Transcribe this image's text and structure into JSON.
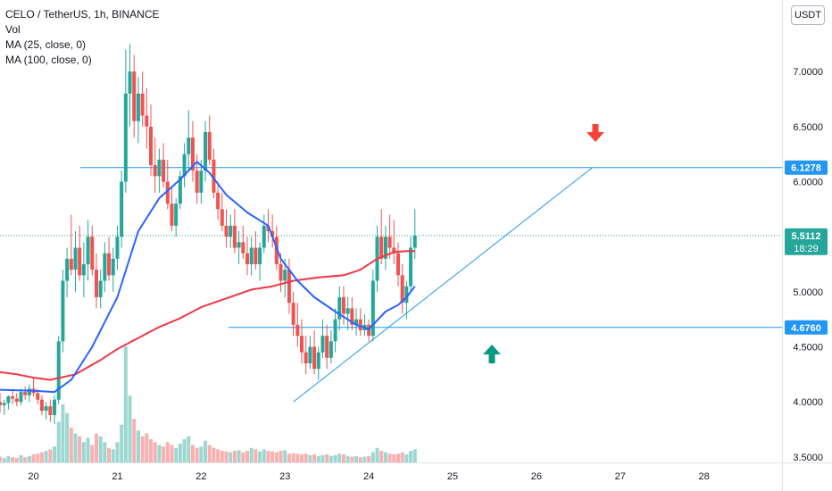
{
  "legend": {
    "symbol": "CELO / TetherUS, 1h, BINANCE",
    "vol": "Vol",
    "ma25": "MA (25, close, 0)",
    "ma100": "MA (100, close, 0)"
  },
  "currency": "USDT",
  "colors": {
    "up": "#26a69a",
    "down": "#ef5350",
    "ma25": "#2962ff",
    "ma100": "#f23645",
    "hline": "#2196f3",
    "arrow_down": "#f44336",
    "arrow_up": "#089981"
  },
  "chart_data": {
    "type": "candlestick",
    "title": "CELO / TetherUS, 1h, BINANCE",
    "x_ticks": [
      "20",
      "21",
      "22",
      "23",
      "24",
      "25",
      "26",
      "27",
      "28"
    ],
    "y_ticks": [
      "7.0000",
      "6.5000",
      "6.0000",
      "5.5000",
      "5.0000",
      "4.5000",
      "4.0000",
      "3.5000"
    ],
    "y_range": [
      3.45,
      7.65
    ],
    "x_range_days": [
      19.6,
      28.93
    ],
    "last_price": "5.5112",
    "countdown": "18:29",
    "horizontal_levels": [
      "6.1278",
      "4.6760"
    ],
    "trendline": {
      "from": [
        23.1,
        4.0
      ],
      "to": [
        26.67,
        6.13
      ]
    },
    "ma25_points": [
      [
        19.6,
        4.11
      ],
      [
        20.0,
        4.1
      ],
      [
        20.25,
        4.09
      ],
      [
        20.45,
        4.2
      ],
      [
        20.7,
        4.5
      ],
      [
        21.0,
        4.95
      ],
      [
        21.25,
        5.55
      ],
      [
        21.5,
        5.85
      ],
      [
        21.75,
        6.02
      ],
      [
        21.95,
        6.18
      ],
      [
        22.1,
        6.08
      ],
      [
        22.3,
        5.88
      ],
      [
        22.55,
        5.72
      ],
      [
        22.8,
        5.6
      ],
      [
        22.95,
        5.3
      ],
      [
        23.15,
        5.1
      ],
      [
        23.35,
        4.95
      ],
      [
        23.6,
        4.82
      ],
      [
        23.85,
        4.7
      ],
      [
        24.0,
        4.66
      ],
      [
        24.2,
        4.82
      ],
      [
        24.35,
        4.88
      ],
      [
        24.45,
        4.95
      ],
      [
        24.55,
        5.05
      ]
    ],
    "ma100_points": [
      [
        19.6,
        4.27
      ],
      [
        19.8,
        4.25
      ],
      [
        20.0,
        4.22
      ],
      [
        20.2,
        4.2
      ],
      [
        20.5,
        4.25
      ],
      [
        20.8,
        4.38
      ],
      [
        21.0,
        4.48
      ],
      [
        21.25,
        4.58
      ],
      [
        21.5,
        4.68
      ],
      [
        21.75,
        4.76
      ],
      [
        22.0,
        4.86
      ],
      [
        22.3,
        4.94
      ],
      [
        22.6,
        5.02
      ],
      [
        22.85,
        5.05
      ],
      [
        23.1,
        5.1
      ],
      [
        23.4,
        5.13
      ],
      [
        23.7,
        5.15
      ],
      [
        23.9,
        5.2
      ],
      [
        24.1,
        5.3
      ],
      [
        24.3,
        5.36
      ],
      [
        24.45,
        5.37
      ],
      [
        24.55,
        5.37
      ]
    ],
    "ohlc": [
      [
        19.6,
        4.0,
        4.08,
        3.9,
        3.97
      ],
      [
        19.65,
        3.97,
        4.02,
        3.88,
        3.99
      ],
      [
        19.7,
        3.99,
        4.06,
        3.93,
        4.05
      ],
      [
        19.75,
        4.05,
        4.1,
        3.98,
        4.03
      ],
      [
        19.8,
        4.03,
        4.08,
        3.96,
        4.0
      ],
      [
        19.85,
        4.0,
        4.12,
        3.97,
        4.09
      ],
      [
        19.9,
        4.09,
        4.14,
        4.02,
        4.06
      ],
      [
        19.95,
        4.06,
        4.16,
        4.0,
        4.12
      ],
      [
        20.0,
        4.12,
        4.22,
        4.05,
        4.08
      ],
      [
        20.05,
        4.08,
        4.12,
        3.98,
        4.02
      ],
      [
        20.1,
        4.02,
        4.06,
        3.88,
        3.92
      ],
      [
        20.15,
        3.92,
        4.0,
        3.84,
        3.96
      ],
      [
        20.2,
        3.96,
        4.02,
        3.82,
        3.88
      ],
      [
        20.25,
        3.88,
        4.06,
        3.8,
        4.02
      ],
      [
        20.3,
        4.02,
        4.6,
        3.98,
        4.55
      ],
      [
        20.35,
        4.55,
        5.2,
        4.45,
        5.1
      ],
      [
        20.4,
        5.1,
        5.4,
        4.95,
        5.3
      ],
      [
        20.45,
        5.3,
        5.7,
        5.15,
        5.2
      ],
      [
        20.5,
        5.2,
        5.55,
        5.0,
        5.4
      ],
      [
        20.55,
        5.4,
        5.6,
        5.1,
        5.15
      ],
      [
        20.6,
        5.15,
        5.45,
        4.95,
        5.25
      ],
      [
        20.65,
        5.25,
        5.65,
        5.1,
        5.5
      ],
      [
        20.7,
        5.5,
        5.6,
        5.15,
        5.2
      ],
      [
        20.75,
        5.2,
        5.35,
        4.85,
        4.95
      ],
      [
        20.8,
        4.95,
        5.2,
        4.85,
        5.1
      ],
      [
        20.85,
        5.1,
        5.45,
        5.0,
        5.35
      ],
      [
        20.9,
        5.35,
        5.5,
        5.1,
        5.15
      ],
      [
        20.95,
        5.15,
        5.4,
        5.0,
        5.3
      ],
      [
        21.0,
        5.3,
        5.6,
        5.2,
        5.5
      ],
      [
        21.05,
        5.5,
        6.1,
        5.4,
        6.0
      ],
      [
        21.1,
        6.0,
        7.2,
        5.9,
        6.8
      ],
      [
        21.15,
        6.8,
        7.25,
        6.5,
        7.0
      ],
      [
        21.2,
        7.0,
        7.15,
        6.4,
        6.55
      ],
      [
        21.25,
        6.55,
        6.95,
        6.35,
        6.8
      ],
      [
        21.3,
        6.8,
        7.0,
        6.5,
        6.6
      ],
      [
        21.35,
        6.6,
        6.85,
        6.3,
        6.5
      ],
      [
        21.4,
        6.5,
        6.7,
        6.05,
        6.15
      ],
      [
        21.45,
        6.15,
        6.4,
        5.9,
        6.05
      ],
      [
        21.5,
        6.05,
        6.3,
        5.9,
        6.2
      ],
      [
        21.55,
        6.2,
        6.35,
        5.95,
        6.0
      ],
      [
        21.6,
        6.0,
        6.2,
        5.75,
        5.8
      ],
      [
        21.65,
        5.8,
        5.95,
        5.55,
        5.6
      ],
      [
        21.7,
        5.6,
        5.85,
        5.5,
        5.8
      ],
      [
        21.75,
        5.8,
        6.1,
        5.75,
        6.05
      ],
      [
        21.8,
        6.05,
        6.35,
        5.95,
        6.25
      ],
      [
        21.85,
        6.25,
        6.65,
        6.1,
        6.4
      ],
      [
        21.9,
        6.4,
        6.55,
        6.0,
        6.1
      ],
      [
        21.95,
        6.1,
        6.25,
        5.8,
        5.9
      ],
      [
        22.0,
        5.9,
        6.2,
        5.8,
        6.1
      ],
      [
        22.05,
        6.1,
        6.55,
        6.0,
        6.45
      ],
      [
        22.1,
        6.45,
        6.6,
        6.15,
        6.2
      ],
      [
        22.15,
        6.2,
        6.3,
        5.85,
        5.9
      ],
      [
        22.2,
        5.9,
        6.0,
        5.65,
        5.75
      ],
      [
        22.25,
        5.75,
        5.9,
        5.55,
        5.6
      ],
      [
        22.3,
        5.6,
        5.75,
        5.4,
        5.5
      ],
      [
        22.35,
        5.5,
        5.7,
        5.4,
        5.6
      ],
      [
        22.4,
        5.6,
        5.75,
        5.35,
        5.4
      ],
      [
        22.45,
        5.4,
        5.55,
        5.25,
        5.45
      ],
      [
        22.5,
        5.45,
        5.6,
        5.3,
        5.35
      ],
      [
        22.55,
        5.35,
        5.5,
        5.15,
        5.25
      ],
      [
        22.6,
        5.25,
        5.5,
        5.15,
        5.4
      ],
      [
        22.65,
        5.4,
        5.55,
        5.2,
        5.25
      ],
      [
        22.7,
        5.25,
        5.45,
        5.1,
        5.4
      ],
      [
        22.75,
        5.4,
        5.7,
        5.35,
        5.6
      ],
      [
        22.8,
        5.6,
        5.75,
        5.45,
        5.55
      ],
      [
        22.85,
        5.55,
        5.7,
        5.4,
        5.5
      ],
      [
        22.9,
        5.5,
        5.6,
        5.2,
        5.25
      ],
      [
        22.95,
        5.25,
        5.35,
        5.0,
        5.1
      ],
      [
        23.0,
        5.1,
        5.3,
        4.95,
        5.2
      ],
      [
        23.05,
        5.2,
        5.3,
        4.8,
        4.9
      ],
      [
        23.1,
        4.9,
        5.0,
        4.6,
        4.7
      ],
      [
        23.15,
        4.7,
        4.9,
        4.5,
        4.6
      ],
      [
        23.2,
        4.6,
        4.75,
        4.35,
        4.45
      ],
      [
        23.25,
        4.45,
        4.6,
        4.25,
        4.35
      ],
      [
        23.3,
        4.35,
        4.6,
        4.3,
        4.5
      ],
      [
        23.35,
        4.5,
        4.65,
        4.25,
        4.3
      ],
      [
        23.4,
        4.3,
        4.5,
        4.2,
        4.45
      ],
      [
        23.45,
        4.45,
        4.75,
        4.4,
        4.6
      ],
      [
        23.5,
        4.6,
        4.7,
        4.3,
        4.4
      ],
      [
        23.55,
        4.4,
        4.65,
        4.35,
        4.55
      ],
      [
        23.6,
        4.55,
        4.85,
        4.45,
        4.75
      ],
      [
        23.65,
        4.75,
        5.05,
        4.65,
        4.95
      ],
      [
        23.7,
        4.95,
        5.05,
        4.7,
        4.8
      ],
      [
        23.75,
        4.8,
        4.95,
        4.65,
        4.85
      ],
      [
        23.8,
        4.85,
        4.95,
        4.65,
        4.7
      ],
      [
        23.85,
        4.7,
        4.85,
        4.6,
        4.75
      ],
      [
        23.9,
        4.75,
        4.85,
        4.6,
        4.65
      ],
      [
        23.95,
        4.65,
        4.8,
        4.6,
        4.7
      ],
      [
        24.0,
        4.7,
        4.75,
        4.55,
        4.6
      ],
      [
        24.05,
        4.6,
        5.2,
        4.55,
        5.1
      ],
      [
        24.1,
        5.1,
        5.6,
        5.0,
        5.5
      ],
      [
        24.15,
        5.5,
        5.75,
        5.25,
        5.3
      ],
      [
        24.2,
        5.3,
        5.6,
        5.2,
        5.5
      ],
      [
        24.25,
        5.5,
        5.7,
        5.3,
        5.4
      ],
      [
        24.3,
        5.4,
        5.65,
        5.25,
        5.35
      ],
      [
        24.35,
        5.35,
        5.45,
        5.05,
        5.15
      ],
      [
        24.4,
        5.15,
        5.25,
        4.8,
        4.9
      ],
      [
        24.45,
        4.9,
        5.1,
        4.75,
        5.05
      ],
      [
        24.5,
        5.05,
        5.5,
        5.0,
        5.4
      ],
      [
        24.55,
        5.4,
        5.75,
        5.3,
        5.51
      ]
    ],
    "volume": [
      [
        19.6,
        0.2
      ],
      [
        19.65,
        0.15
      ],
      [
        19.7,
        0.22
      ],
      [
        19.75,
        0.18
      ],
      [
        19.8,
        0.16
      ],
      [
        19.85,
        0.25
      ],
      [
        19.9,
        0.18
      ],
      [
        19.95,
        0.22
      ],
      [
        20.0,
        0.28
      ],
      [
        20.05,
        0.3
      ],
      [
        20.1,
        0.35
      ],
      [
        20.15,
        0.4
      ],
      [
        20.2,
        0.45
      ],
      [
        20.25,
        0.55
      ],
      [
        20.3,
        1.4
      ],
      [
        20.35,
        2.0
      ],
      [
        20.4,
        1.7
      ],
      [
        20.45,
        1.2
      ],
      [
        20.5,
        1.0
      ],
      [
        20.55,
        0.9
      ],
      [
        20.6,
        0.7
      ],
      [
        20.65,
        0.85
      ],
      [
        20.7,
        0.6
      ],
      [
        20.75,
        1.0
      ],
      [
        20.8,
        0.9
      ],
      [
        20.85,
        0.7
      ],
      [
        20.9,
        0.5
      ],
      [
        20.95,
        0.45
      ],
      [
        21.0,
        0.7
      ],
      [
        21.05,
        1.3
      ],
      [
        21.1,
        4.0
      ],
      [
        21.15,
        2.3
      ],
      [
        21.2,
        1.5
      ],
      [
        21.25,
        1.1
      ],
      [
        21.3,
        0.9
      ],
      [
        21.35,
        1.0
      ],
      [
        21.4,
        0.8
      ],
      [
        21.45,
        0.7
      ],
      [
        21.5,
        0.6
      ],
      [
        21.55,
        0.55
      ],
      [
        21.6,
        0.7
      ],
      [
        21.65,
        0.6
      ],
      [
        21.7,
        0.5
      ],
      [
        21.75,
        0.65
      ],
      [
        21.8,
        0.8
      ],
      [
        21.85,
        0.9
      ],
      [
        21.9,
        0.6
      ],
      [
        21.95,
        0.5
      ],
      [
        22.0,
        0.55
      ],
      [
        22.05,
        0.75
      ],
      [
        22.1,
        0.6
      ],
      [
        22.15,
        0.5
      ],
      [
        22.2,
        0.45
      ],
      [
        22.25,
        0.4
      ],
      [
        22.3,
        0.38
      ],
      [
        22.35,
        0.35
      ],
      [
        22.4,
        0.4
      ],
      [
        22.45,
        0.42
      ],
      [
        22.5,
        0.35
      ],
      [
        22.55,
        0.4
      ],
      [
        22.6,
        0.5
      ],
      [
        22.65,
        0.45
      ],
      [
        22.7,
        0.38
      ],
      [
        22.75,
        0.45
      ],
      [
        22.8,
        0.4
      ],
      [
        22.85,
        0.38
      ],
      [
        22.9,
        0.35
      ],
      [
        22.95,
        0.4
      ],
      [
        23.0,
        0.42
      ],
      [
        23.05,
        0.3
      ],
      [
        23.1,
        0.32
      ],
      [
        23.15,
        0.3
      ],
      [
        23.2,
        0.28
      ],
      [
        23.25,
        0.3
      ],
      [
        23.3,
        0.25
      ],
      [
        23.35,
        0.28
      ],
      [
        23.4,
        0.22
      ],
      [
        23.45,
        0.25
      ],
      [
        23.5,
        0.28
      ],
      [
        23.55,
        0.22
      ],
      [
        23.6,
        0.25
      ],
      [
        23.65,
        0.3
      ],
      [
        23.7,
        0.28
      ],
      [
        23.75,
        0.22
      ],
      [
        23.8,
        0.2
      ],
      [
        23.85,
        0.22
      ],
      [
        23.9,
        0.18
      ],
      [
        23.95,
        0.2
      ],
      [
        24.0,
        0.22
      ],
      [
        24.05,
        0.35
      ],
      [
        24.1,
        0.5
      ],
      [
        24.15,
        0.4
      ],
      [
        24.2,
        0.35
      ],
      [
        24.25,
        0.3
      ],
      [
        24.3,
        0.28
      ],
      [
        24.35,
        0.3
      ],
      [
        24.4,
        0.35
      ],
      [
        24.45,
        0.28
      ],
      [
        24.5,
        0.4
      ],
      [
        24.55,
        0.45
      ]
    ]
  }
}
